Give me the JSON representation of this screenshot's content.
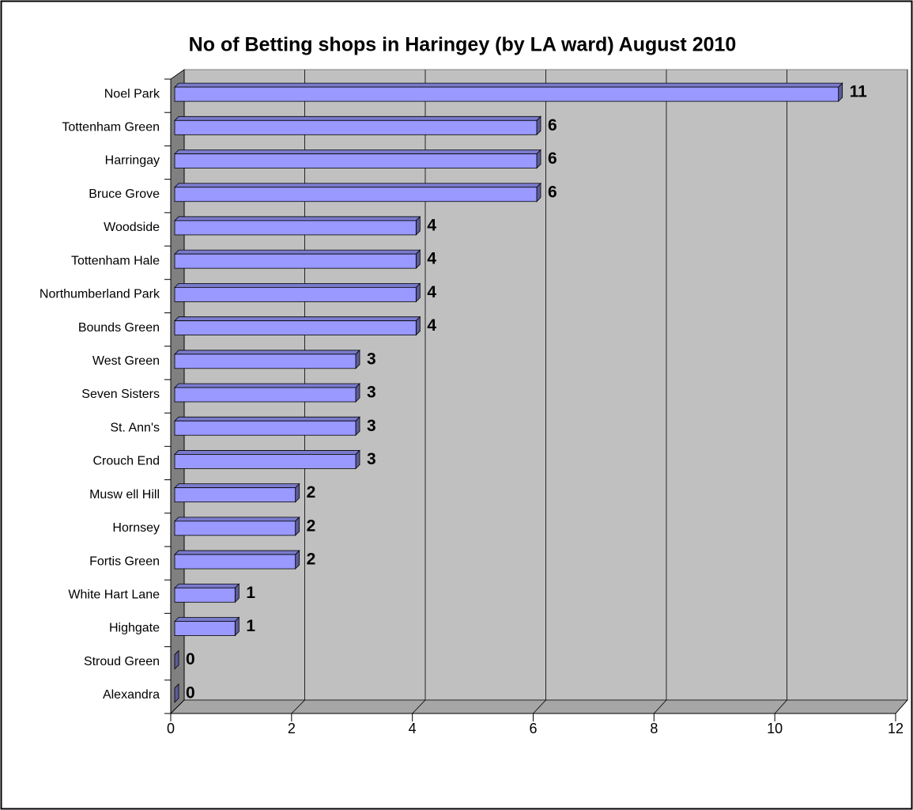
{
  "chart_data": {
    "type": "bar",
    "orientation": "horizontal",
    "title": "No of Betting shops in Haringey (by LA ward) August 2010",
    "categories": [
      "Noel Park",
      "Tottenham Green",
      "Harringay",
      "Bruce Grove",
      "Woodside",
      "Tottenham Hale",
      "Northumberland Park",
      "Bounds Green",
      "West Green",
      "Seven Sisters",
      "St. Ann's",
      "Crouch End",
      "Musw ell Hill",
      "Hornsey",
      "Fortis Green",
      "White Hart Lane",
      "Highgate",
      "Stroud Green",
      "Alexandra"
    ],
    "values": [
      11,
      6,
      6,
      6,
      4,
      4,
      4,
      4,
      3,
      3,
      3,
      3,
      2,
      2,
      2,
      1,
      1,
      0,
      0
    ],
    "color": "#9999ff",
    "xlim": [
      0,
      12
    ],
    "xticks": [
      0,
      2,
      4,
      6,
      8,
      10,
      12
    ],
    "grid": true
  }
}
